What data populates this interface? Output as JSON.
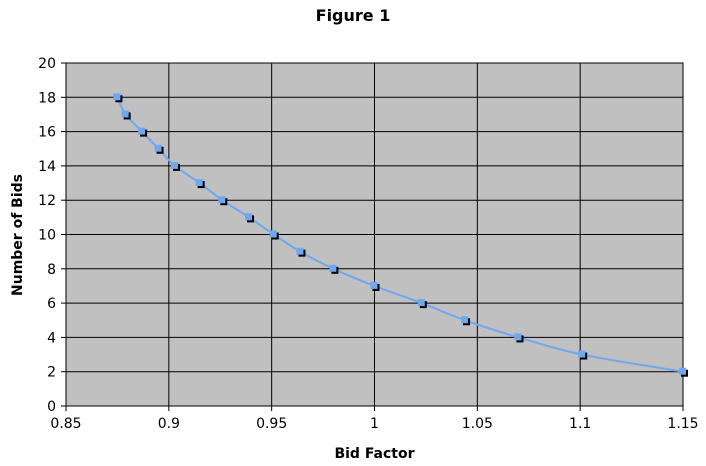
{
  "chart_data": {
    "type": "scatter",
    "title": "Figure 1",
    "xlabel": "Bid Factor",
    "ylabel": "Number of Bids",
    "xlim": [
      0.85,
      1.15
    ],
    "ylim": [
      0,
      20
    ],
    "x_ticks": [
      "0.85",
      "0.9",
      "0.95",
      "1",
      "1.05",
      "1.1",
      "1.15"
    ],
    "y_ticks": [
      "0",
      "2",
      "4",
      "6",
      "8",
      "10",
      "12",
      "14",
      "16",
      "18",
      "20"
    ],
    "grid": true,
    "plot_background": "#c0c0c0",
    "series_color": "#6fa8f0",
    "marker_shadow_color": "#000000",
    "series": [
      {
        "x": [
          0.875,
          0.879,
          0.887,
          0.895,
          0.903,
          0.915,
          0.926,
          0.939,
          0.951,
          0.964,
          0.98,
          1.0,
          1.023,
          1.044,
          1.07,
          1.101,
          1.15
        ],
        "y": [
          18,
          17,
          16,
          15,
          14,
          13,
          12,
          11,
          10,
          9,
          8,
          7,
          6,
          5,
          4,
          3,
          2
        ]
      }
    ]
  }
}
